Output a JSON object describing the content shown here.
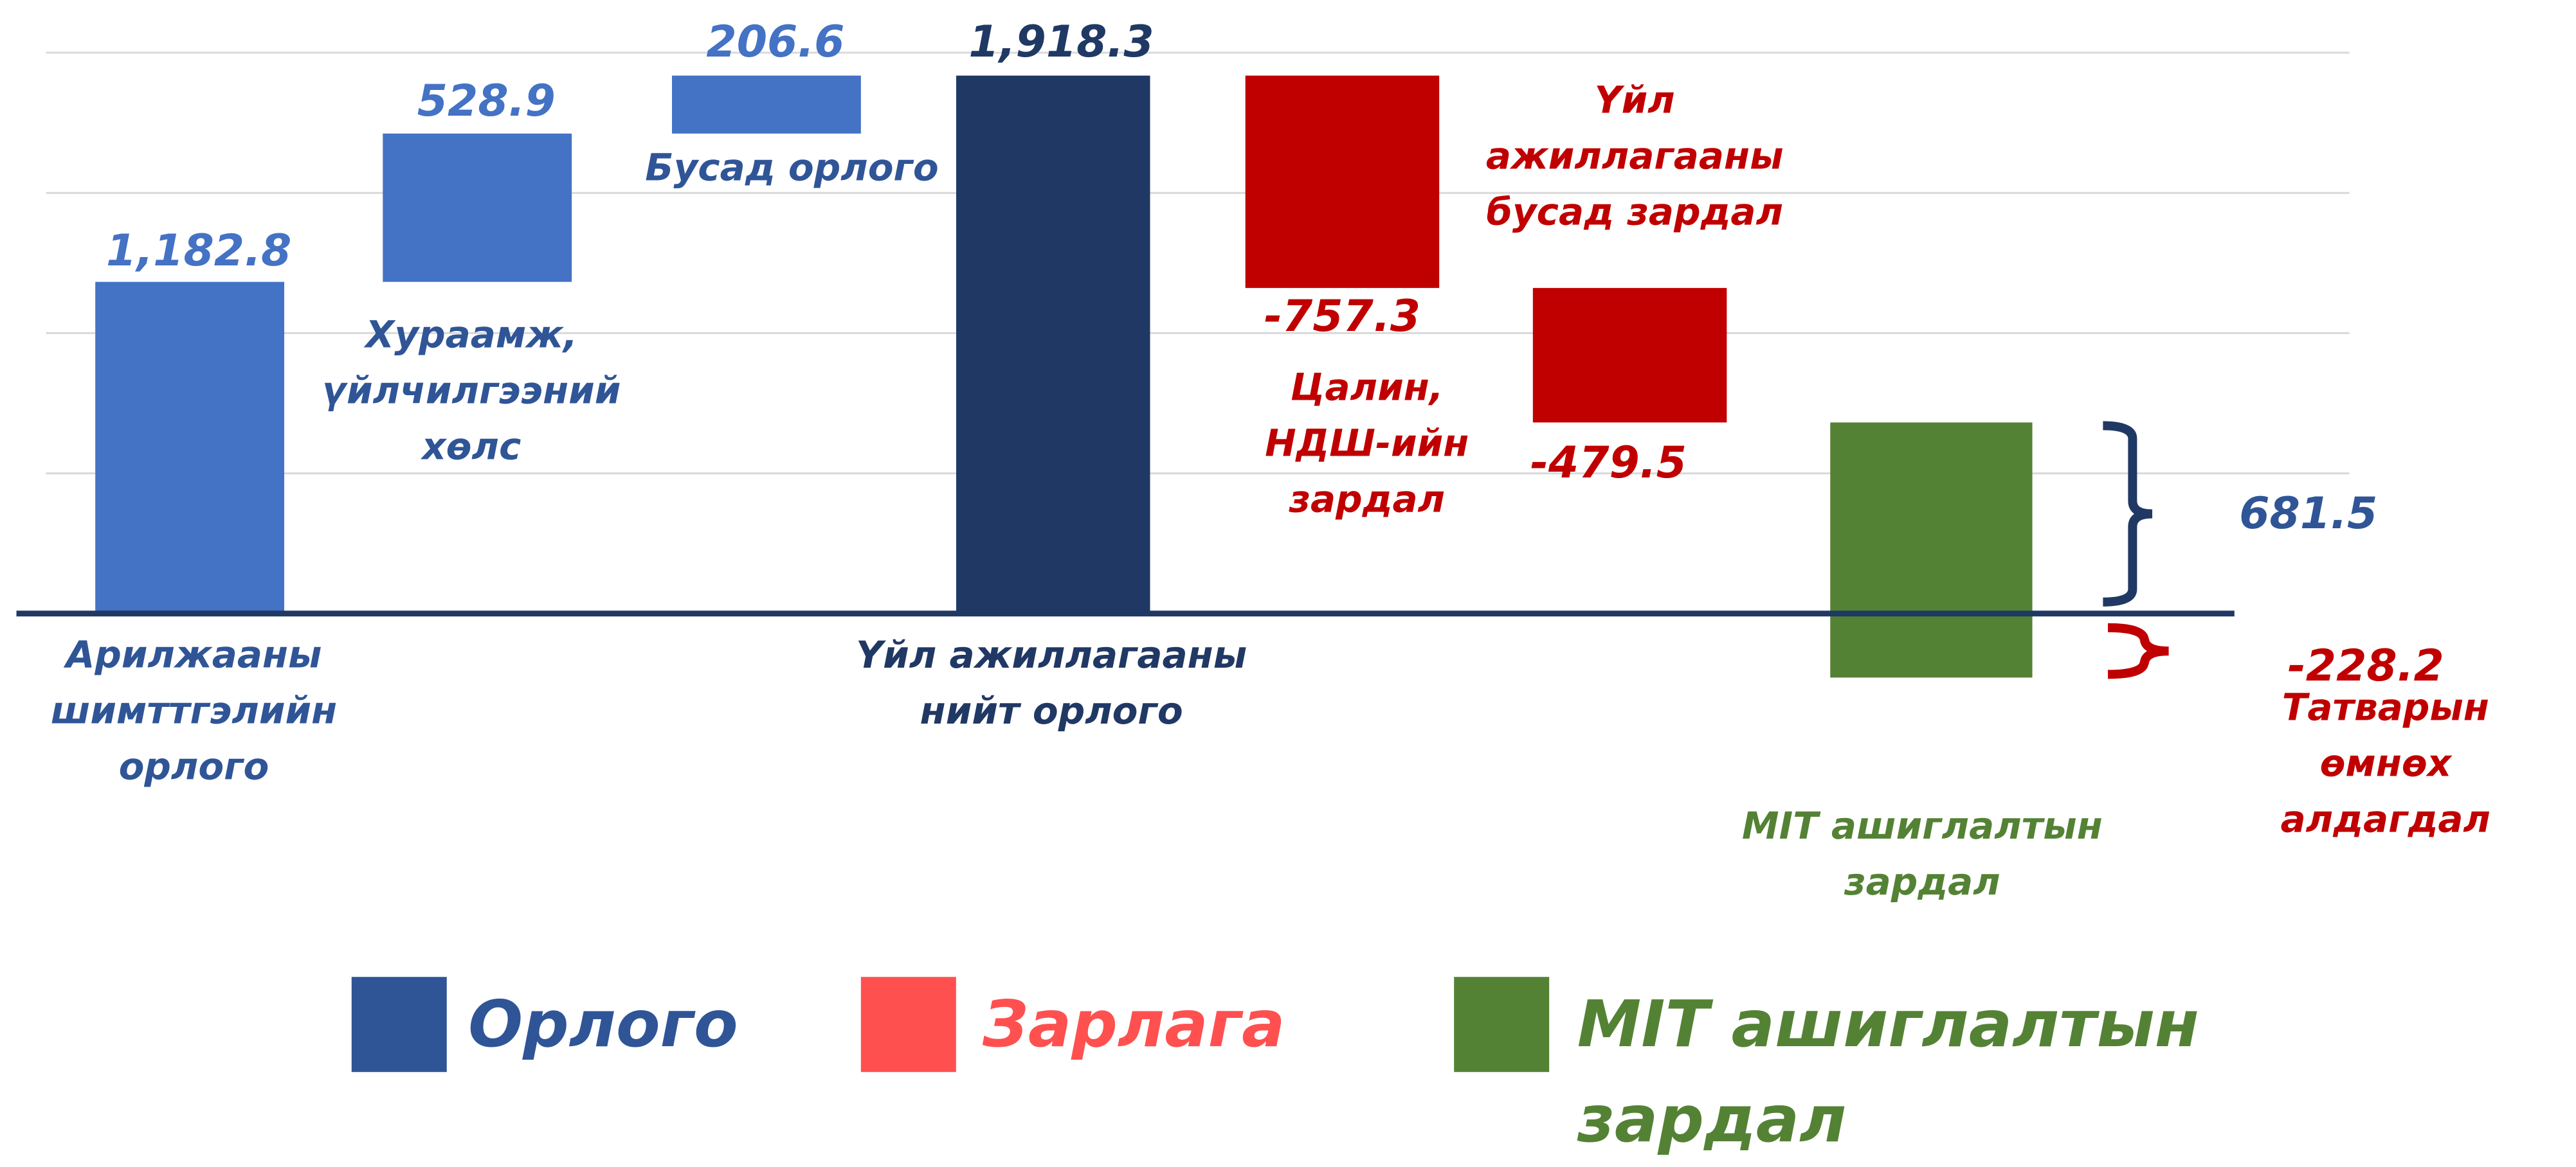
{
  "chart_data": {
    "type": "waterfall",
    "categories": [
      "Арилжааны\nшимттгэлийн\nорлого",
      "Хураамж,\nүйлчилгээний\nхөлс",
      "Бусад орлого",
      "Үйл ажиллагааны\nнийт орлого",
      "Үйл\nажиллагааны\nбусад зардал",
      "Цалин,\nНДШ-ийн\nзардал"
    ],
    "values": [
      1182.8,
      528.9,
      206.6,
      1918.3,
      -757.3,
      -479.5
    ],
    "value_labels": [
      "1,182.8",
      "528.9",
      "206.6",
      "1,918.3",
      "-757.3",
      "-479.5"
    ],
    "measure": [
      "relative",
      "relative",
      "relative",
      "total",
      "relative",
      "relative"
    ],
    "colors": [
      "#4472c4",
      "#4472c4",
      "#4472c4",
      "#203864",
      "#c00000",
      "#c00000"
    ],
    "mit_bar": {
      "category": "МІТ ашиглалтын\nзардал",
      "top": 681.5,
      "bottom": -228.2,
      "color": "#548235",
      "top_label": "681.5",
      "bottom_label": "-228.2",
      "bottom_note": "Татварын\nөмнөх алдагдал"
    },
    "ylim": [
      -500,
      2000
    ],
    "yticks": [
      500,
      1000,
      1500,
      2000
    ],
    "grid": true,
    "legend": [
      {
        "name": "Орлого",
        "color": "#2f5597"
      },
      {
        "name": "Зарлага",
        "color": "#ff5050"
      },
      {
        "name": "МІТ ашиглалтын\nзардал",
        "color": "#548235"
      }
    ]
  }
}
